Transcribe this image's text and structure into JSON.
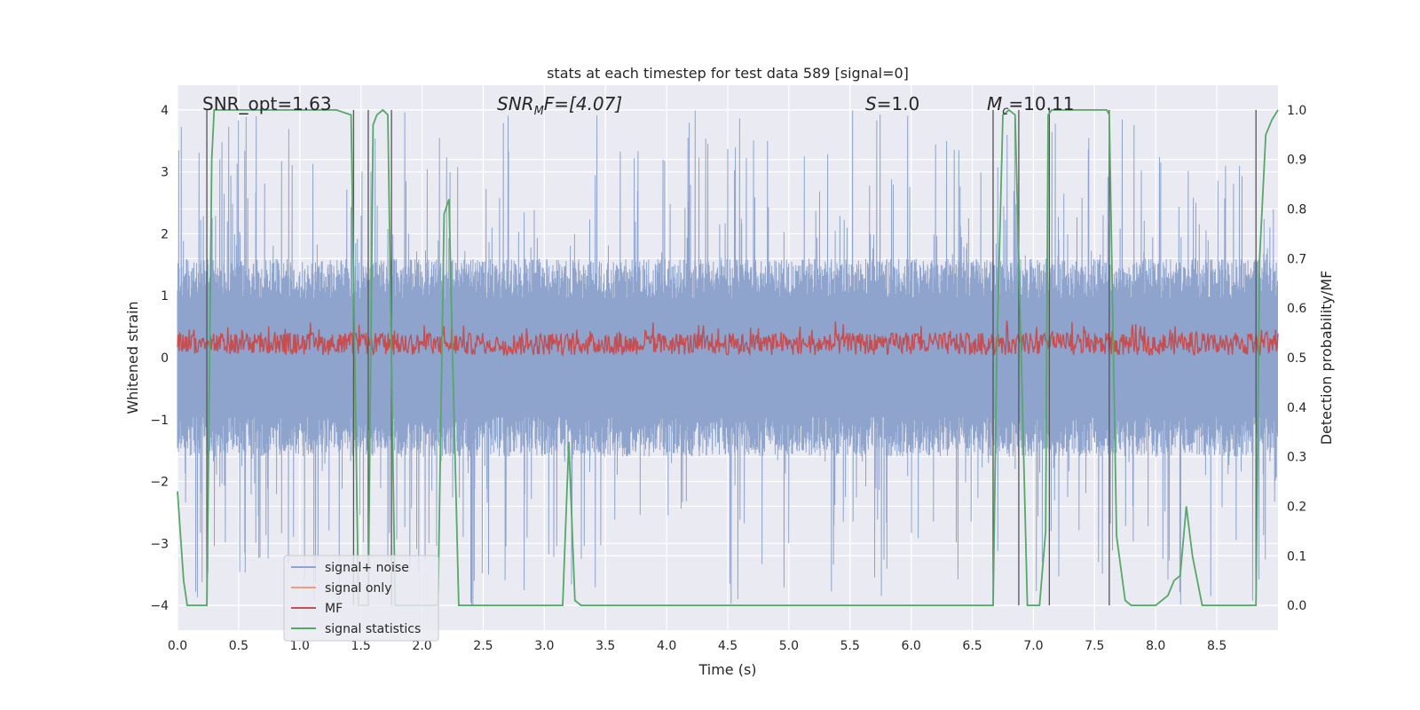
{
  "chart_data": {
    "type": "line",
    "title": "stats at each timestep for test data 589 [signal=0]",
    "xlabel": "Time (s)",
    "ylabel": "Whitened strain",
    "y2label": "Detection probability/MF",
    "xlim": [
      0.0,
      9.0
    ],
    "ylim": [
      -4.4,
      4.4
    ],
    "y2lim": [
      -0.05,
      1.05
    ],
    "x_ticks": [
      0.0,
      0.5,
      1.0,
      1.5,
      2.0,
      2.5,
      3.0,
      3.5,
      4.0,
      4.5,
      5.0,
      5.5,
      6.0,
      6.5,
      7.0,
      7.5,
      8.0,
      8.5
    ],
    "x_tick_labels": [
      "0.0",
      "0.5",
      "1.0",
      "1.5",
      "2.0",
      "2.5",
      "3.0",
      "3.5",
      "4.0",
      "4.5",
      "5.0",
      "5.5",
      "6.0",
      "6.5",
      "7.0",
      "7.5",
      "8.0",
      "8.5"
    ],
    "y_ticks": [
      -4,
      -3,
      -2,
      -1,
      0,
      1,
      2,
      3,
      4
    ],
    "y_tick_labels": [
      "−4",
      "−3",
      "−2",
      "−1",
      "0",
      "1",
      "2",
      "3",
      "4"
    ],
    "y2_ticks": [
      0.0,
      0.1,
      0.2,
      0.3,
      0.4,
      0.5,
      0.6,
      0.7,
      0.8,
      0.9,
      1.0
    ],
    "y2_tick_labels": [
      "0.0",
      "0.1",
      "0.2",
      "0.3",
      "0.4",
      "0.5",
      "0.6",
      "0.7",
      "0.8",
      "0.9",
      "1.0"
    ],
    "annotations": {
      "snr_opt": "SNR_opt=1.63",
      "snr_mf_main": "SNR",
      "snr_mf_sub": "M",
      "snr_mf_rest": "F=[4.07]",
      "s_main": "S",
      "s_rest": "=1.0",
      "mc_main": "M",
      "mc_sub": "c",
      "mc_rest": "=10.11"
    },
    "legend": {
      "placement": "lower-left",
      "entries": [
        "signal+ noise",
        "signal only",
        "MF",
        "signal statistics"
      ]
    },
    "series": [
      {
        "name": "signal+ noise",
        "axis": "left",
        "color": "#8fa4cc",
        "description": "noise band",
        "amplitude_typical": 1.6,
        "amplitude_peak": 4.0
      },
      {
        "name": "signal only",
        "axis": "left",
        "color": "#e8a07e",
        "values": []
      },
      {
        "name": "MF",
        "axis": "right",
        "color": "#c44e52",
        "range": [
          0.5,
          0.6
        ]
      },
      {
        "name": "signal statistics",
        "axis": "right",
        "color": "#55a868",
        "x": [
          0.0,
          0.05,
          0.08,
          0.12,
          0.2,
          0.24,
          0.25,
          0.28,
          0.3,
          0.4,
          0.8,
          1.0,
          1.3,
          1.42,
          1.45,
          1.48,
          1.52,
          1.56,
          1.6,
          1.63,
          1.68,
          1.72,
          1.75,
          1.78,
          1.85,
          1.95,
          2.0,
          2.1,
          2.13,
          2.18,
          2.22,
          2.25,
          2.3,
          2.35,
          2.5,
          3.0,
          3.15,
          3.2,
          3.25,
          3.3,
          3.4,
          3.5,
          3.6,
          4.0,
          5.0,
          6.0,
          6.5,
          6.6,
          6.67,
          6.7,
          6.75,
          6.8,
          6.85,
          6.9,
          6.95,
          7.0,
          7.05,
          7.1,
          7.12,
          7.15,
          7.2,
          7.3,
          7.5,
          7.6,
          7.62,
          7.68,
          7.75,
          7.8,
          7.9,
          8.0,
          8.1,
          8.15,
          8.2,
          8.25,
          8.3,
          8.38,
          8.5,
          8.7,
          8.82,
          8.85,
          8.9,
          8.95,
          9.0
        ],
        "values": [
          0.23,
          0.05,
          0.0,
          0.0,
          0.0,
          0.0,
          0.2,
          0.9,
          1.0,
          1.0,
          1.0,
          1.0,
          1.0,
          0.99,
          0.5,
          0.0,
          0.0,
          0.0,
          0.97,
          0.99,
          1.0,
          0.99,
          0.5,
          0.0,
          0.0,
          0.0,
          0.0,
          0.0,
          0.0,
          0.79,
          0.82,
          0.5,
          0.0,
          0.0,
          0.0,
          0.0,
          0.0,
          0.33,
          0.01,
          0.0,
          0.0,
          0.0,
          0.0,
          0.0,
          0.0,
          0.0,
          0.0,
          0.0,
          0.0,
          0.5,
          0.99,
          1.0,
          0.99,
          0.5,
          0.0,
          0.0,
          0.0,
          0.15,
          0.99,
          1.0,
          1.0,
          1.0,
          1.0,
          1.0,
          0.99,
          0.14,
          0.01,
          0.0,
          0.0,
          0.0,
          0.02,
          0.05,
          0.06,
          0.2,
          0.1,
          0.0,
          0.0,
          0.0,
          0.0,
          0.7,
          0.95,
          0.98,
          1.0
        ]
      }
    ],
    "vlines": [
      0.24,
      1.44,
      1.56,
      1.75,
      6.67,
      6.88,
      7.13,
      7.62,
      8.82
    ]
  }
}
